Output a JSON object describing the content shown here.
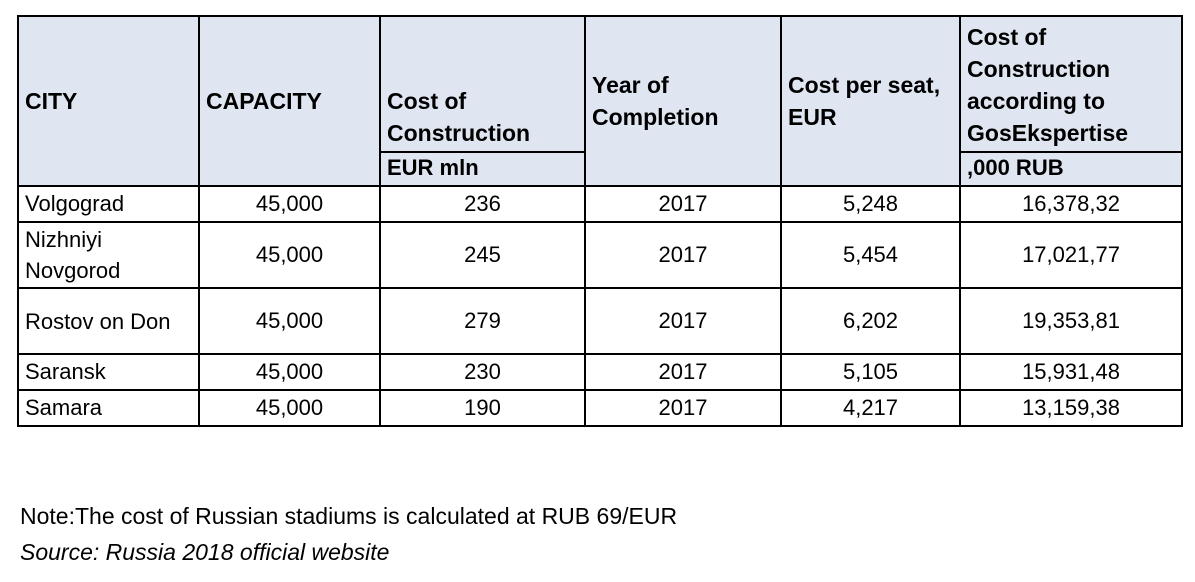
{
  "table": {
    "headers": {
      "city": "CITY",
      "capacity": "CAPACITY",
      "cost": "Cost of Construction",
      "cost_unit": "EUR mln",
      "year": "Year of Completion",
      "cost_per_seat": "Cost per seat, EUR",
      "gos_cost": "Cost of Construction according to GosEkspertise",
      "gos_unit": ",000 RUB"
    },
    "rows": [
      {
        "city": "Volgograd",
        "capacity": "45,000",
        "cost": "236",
        "year": "2017",
        "per_seat": "5,248",
        "gos": "16,378,32"
      },
      {
        "city": "Nizhniyi Novgorod",
        "capacity": "45,000",
        "cost": "245",
        "year": "2017",
        "per_seat": "5,454",
        "gos": "17,021,77"
      },
      {
        "city": "Rostov on Don",
        "capacity": "45,000",
        "cost": "279",
        "year": "2017",
        "per_seat": "6,202",
        "gos": "19,353,81"
      },
      {
        "city": "Saransk",
        "capacity": "45,000",
        "cost": "230",
        "year": "2017",
        "per_seat": "5,105",
        "gos": "15,931,48"
      },
      {
        "city": "Samara",
        "capacity": "45,000",
        "cost": "190",
        "year": "2017",
        "per_seat": "4,217",
        "gos": "13,159,38"
      }
    ]
  },
  "note": "Note:The cost of Russian stadiums is calculated at RUB 69/EUR",
  "source": "Source: Russia 2018 official website",
  "colors": {
    "header_background": "#dfe6f1",
    "border": "#000000"
  }
}
